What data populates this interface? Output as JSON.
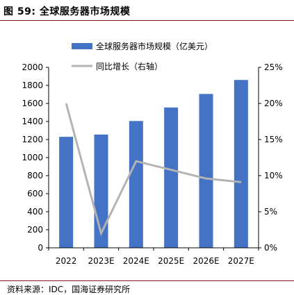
{
  "figure": {
    "title": "图 59:  全球服务器市场规模",
    "source": "资料来源：IDC，国海证券研究所"
  },
  "chart_data": {
    "type": "bar",
    "categories": [
      "2022",
      "2023E",
      "2024E",
      "2025E",
      "2026E",
      "2027E"
    ],
    "series": [
      {
        "name": "全球服务器市场规模（亿美元）",
        "type": "bar",
        "axis": "left",
        "color": "#4472c4",
        "values": [
          1230,
          1255,
          1405,
          1555,
          1705,
          1860
        ]
      },
      {
        "name": "同比增长（右轴）",
        "type": "line",
        "axis": "right",
        "color": "#b3b3b3",
        "values": [
          0.2,
          0.02,
          0.12,
          0.108,
          0.096,
          0.091
        ]
      }
    ],
    "ylim": [
      0,
      2000
    ],
    "yticks": [
      0,
      200,
      400,
      600,
      800,
      1000,
      1200,
      1400,
      1600,
      1800,
      2000
    ],
    "y2lim": [
      0,
      0.25
    ],
    "y2ticks": [
      "0%",
      "5%",
      "10%",
      "15%",
      "20%",
      "25%"
    ],
    "legend": "top-center",
    "grid": false
  }
}
